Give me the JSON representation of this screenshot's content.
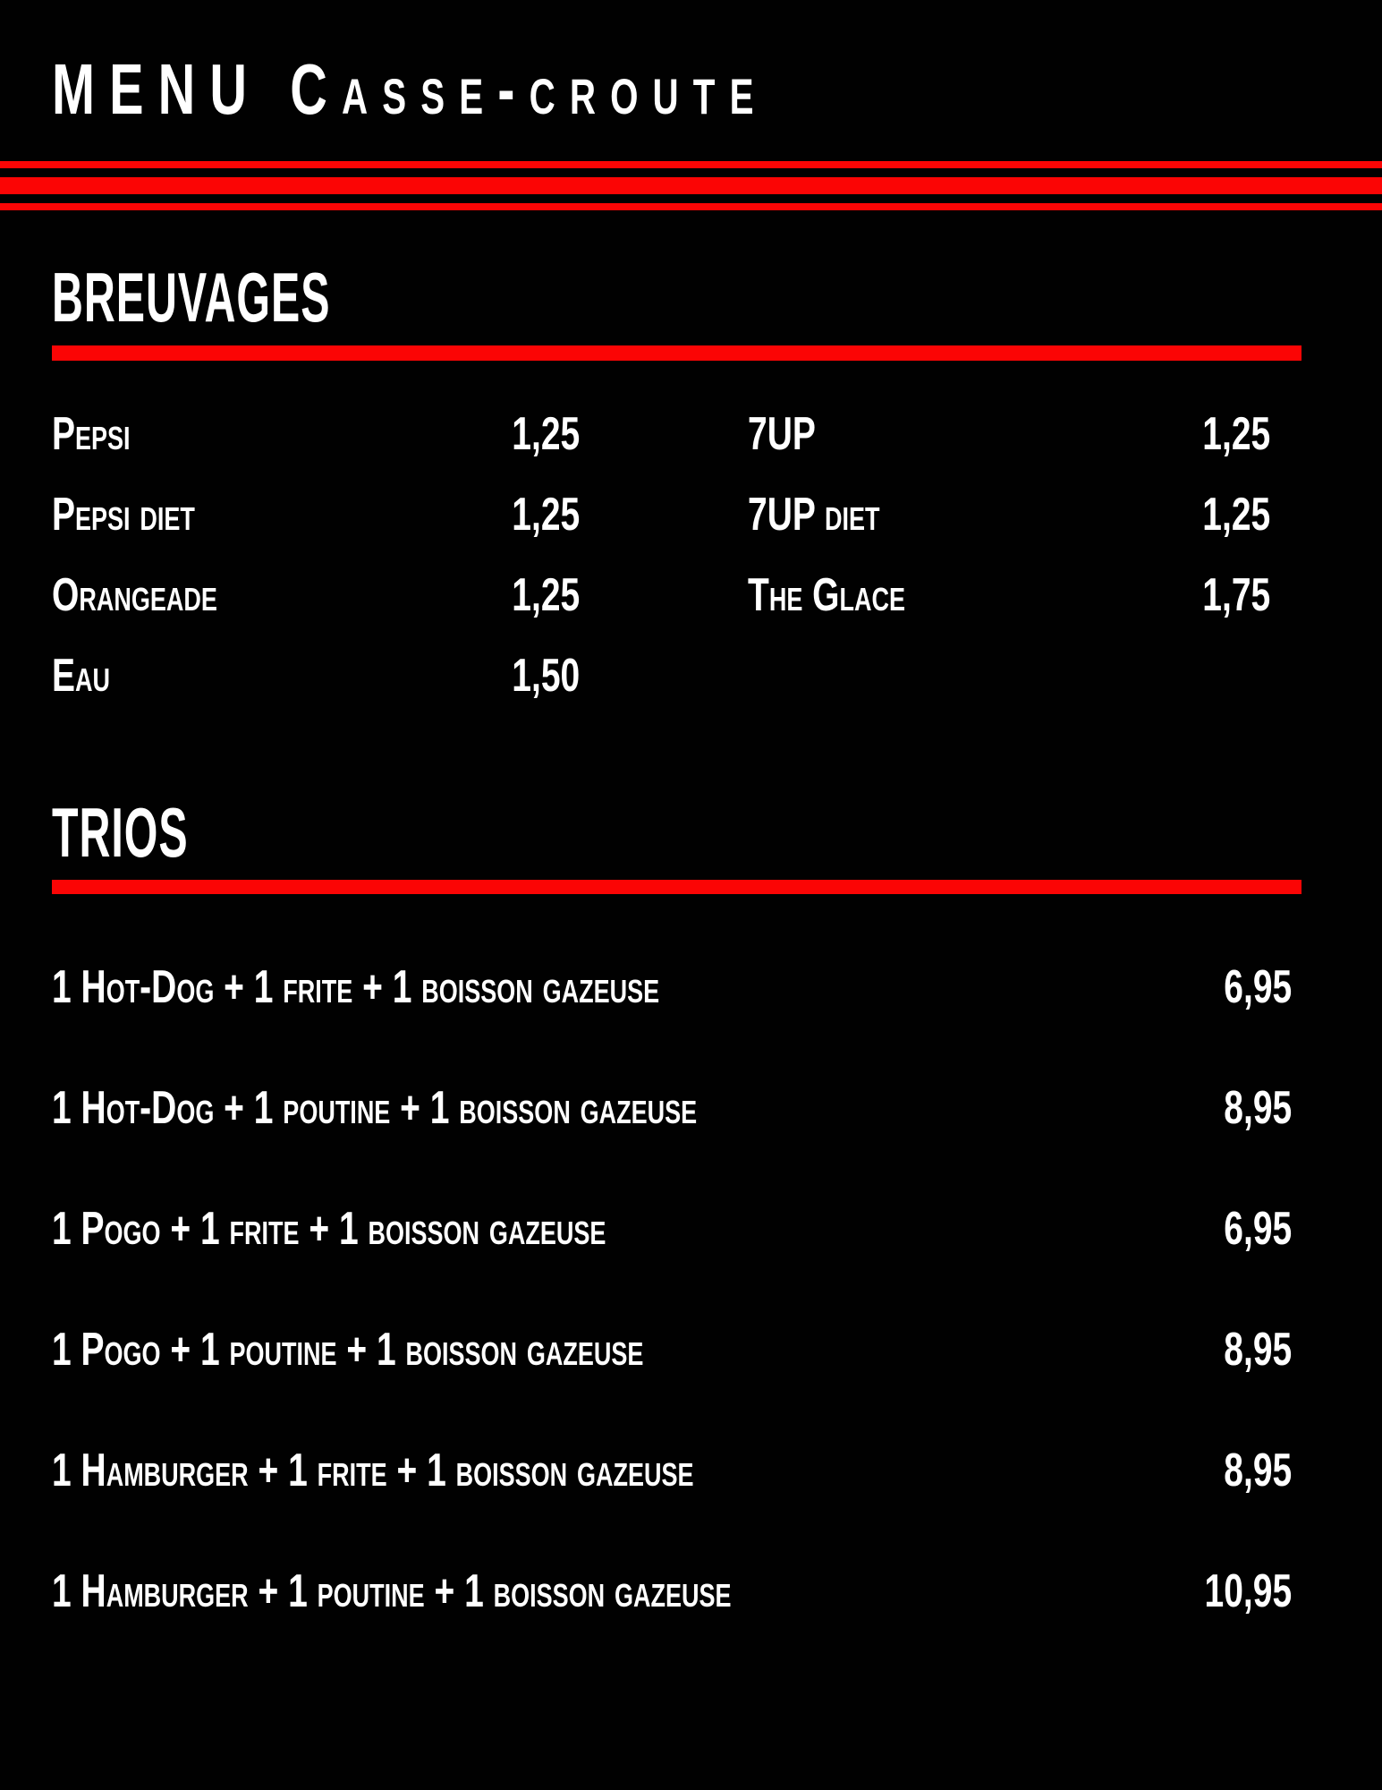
{
  "page": {
    "title": "MENU Casse-croute",
    "background_color": "#010101",
    "accent_color": "#fb0505",
    "text_color": "#ffffff"
  },
  "breuvages": {
    "heading": "BREUVAGES",
    "column1": [
      {
        "name": "Pepsi",
        "price": "1,25"
      },
      {
        "name": "Pepsi diet",
        "price": "1,25"
      },
      {
        "name": "Orangeade",
        "price": "1,25"
      },
      {
        "name": "Eau",
        "price": "1,50"
      }
    ],
    "column2": [
      {
        "name": "7UP",
        "price": "1,25"
      },
      {
        "name": "7UP diet",
        "price": "1,25"
      },
      {
        "name": "The Glace",
        "price": "1,75"
      }
    ]
  },
  "trios": {
    "heading": "TRIOS",
    "items": [
      {
        "name": "1 Hot-Dog + 1 frite + 1 boisson gazeuse",
        "price": "6,95"
      },
      {
        "name": "1 Hot-Dog + 1 poutine + 1 boisson gazeuse",
        "price": "8,95"
      },
      {
        "name": "1 Pogo + 1 frite + 1 boisson gazeuse",
        "price": "6,95"
      },
      {
        "name": "1 Pogo + 1 poutine + 1 boisson gazeuse",
        "price": "8,95"
      },
      {
        "name": "1 Hamburger + 1 frite + 1 boisson gazeuse",
        "price": "8,95"
      },
      {
        "name": "1 Hamburger + 1 poutine + 1 boisson gazeuse",
        "price": "10,95"
      }
    ]
  }
}
